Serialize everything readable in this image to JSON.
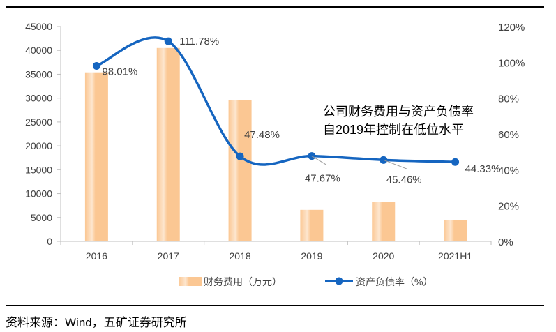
{
  "chart_data": {
    "type": "bar+line",
    "categories": [
      "2016",
      "2017",
      "2018",
      "2019",
      "2020",
      "2021H1"
    ],
    "series": [
      {
        "name": "财务费用（万元）",
        "type": "bar",
        "axis": "left",
        "values": [
          35400,
          40500,
          29600,
          6600,
          8200,
          4400
        ],
        "color": "#FBC793"
      },
      {
        "name": "资产负债率（%）",
        "type": "line",
        "axis": "right",
        "values": [
          98.01,
          111.78,
          47.48,
          47.67,
          45.46,
          44.33
        ],
        "labels": [
          "98.01%",
          "111.78%",
          "47.48%",
          "47.67%",
          "45.46%",
          "44.33%"
        ],
        "color": "#1565C0",
        "smooth": true
      }
    ],
    "left_axis": {
      "ylim": [
        0,
        45000
      ],
      "ticks": [
        "0",
        "5000",
        "10000",
        "15000",
        "20000",
        "25000",
        "30000",
        "35000",
        "40000",
        "45000"
      ]
    },
    "right_axis": {
      "ylim": [
        0,
        120
      ],
      "ticks": [
        "0%",
        "20%",
        "40%",
        "60%",
        "80%",
        "100%",
        "120%"
      ]
    },
    "annotation": [
      "公司财务费用与资产负债率",
      "自2019年控制在低位水平"
    ],
    "legend_position": "bottom",
    "grid": false
  },
  "source": "资料来源：Wind，五矿证券研究所"
}
